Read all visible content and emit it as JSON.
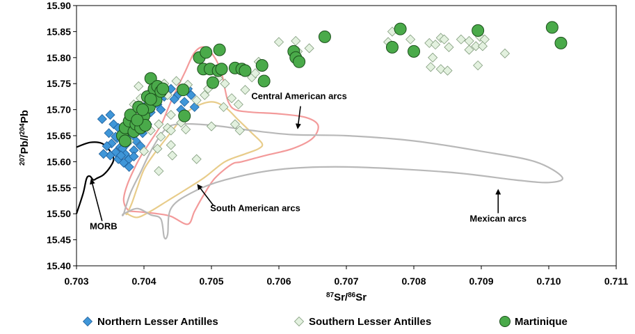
{
  "chart_data": {
    "type": "scatter",
    "xlabel": "87Sr/86Sr",
    "ylabel": "207Pb/204Pb",
    "xlim": [
      0.703,
      0.711
    ],
    "ylim": [
      15.4,
      15.9
    ],
    "x_ticks": [
      "0.703",
      "0.704",
      "0.705",
      "0.706",
      "0.707",
      "0.708",
      "0.709",
      "0.710",
      "0.711"
    ],
    "y_ticks": [
      "15.40",
      "15.45",
      "15.50",
      "15.55",
      "15.60",
      "15.65",
      "15.70",
      "15.75",
      "15.80",
      "15.85",
      "15.90"
    ],
    "grid": false,
    "legend_position": "bottom",
    "colors": {
      "northern": "#3f96d8",
      "northern_edge": "#1f5f9a",
      "southern": "#e3f1df",
      "southern_edge": "#7f9a7a",
      "martinique": "#4aaa4a",
      "martinique_edge": "#1b4f1b",
      "morb": "#000000",
      "central": "#f39a9a",
      "south_american": "#e8cc8a",
      "mexican": "#b8b8b8"
    },
    "series": [
      {
        "name": "Northern Lesser Antilles",
        "marker": "diamond",
        "points": [
          [
            0.7035,
            15.69
          ],
          [
            0.70338,
            15.682
          ],
          [
            0.70355,
            15.672
          ],
          [
            0.70362,
            15.665
          ],
          [
            0.70348,
            15.655
          ],
          [
            0.7036,
            15.645
          ],
          [
            0.70352,
            15.635
          ],
          [
            0.70365,
            15.628
          ],
          [
            0.70358,
            15.618
          ],
          [
            0.7035,
            15.612
          ],
          [
            0.70362,
            15.605
          ],
          [
            0.7037,
            15.598
          ],
          [
            0.70378,
            15.605
          ],
          [
            0.70372,
            15.615
          ],
          [
            0.70368,
            15.625
          ],
          [
            0.70375,
            15.635
          ],
          [
            0.7038,
            15.645
          ],
          [
            0.70385,
            15.622
          ],
          [
            0.70395,
            15.63
          ],
          [
            0.70366,
            15.612
          ],
          [
            0.70345,
            15.63
          ],
          [
            0.70372,
            15.66
          ],
          [
            0.7038,
            15.675
          ],
          [
            0.7039,
            15.69
          ],
          [
            0.704,
            15.705
          ],
          [
            0.70395,
            15.68
          ],
          [
            0.7041,
            15.695
          ],
          [
            0.7042,
            15.71
          ],
          [
            0.7043,
            15.725
          ],
          [
            0.7044,
            15.74
          ],
          [
            0.7045,
            15.728
          ],
          [
            0.7046,
            15.715
          ],
          [
            0.7047,
            15.728
          ],
          [
            0.70475,
            15.705
          ],
          [
            0.70455,
            15.7
          ],
          [
            0.70445,
            15.72
          ],
          [
            0.70465,
            15.74
          ],
          [
            0.70425,
            15.7
          ],
          [
            0.70405,
            15.672
          ],
          [
            0.70398,
            15.655
          ],
          [
            0.70388,
            15.64
          ],
          [
            0.70358,
            15.648
          ],
          [
            0.7034,
            15.615
          ],
          [
            0.70378,
            15.59
          ],
          [
            0.70385,
            15.61
          ]
        ]
      },
      {
        "name": "Southern Lesser Antilles",
        "marker": "diamond",
        "points": [
          [
            0.70385,
            15.71
          ],
          [
            0.70395,
            15.722
          ],
          [
            0.70402,
            15.7
          ],
          [
            0.70412,
            15.738
          ],
          [
            0.7042,
            15.715
          ],
          [
            0.7043,
            15.75
          ],
          [
            0.70435,
            15.728
          ],
          [
            0.7044,
            15.69
          ],
          [
            0.70422,
            15.672
          ],
          [
            0.7041,
            15.66
          ],
          [
            0.70425,
            15.648
          ],
          [
            0.70435,
            15.665
          ],
          [
            0.7039,
            15.695
          ],
          [
            0.70378,
            15.64
          ],
          [
            0.704,
            15.62
          ],
          [
            0.7042,
            15.625
          ],
          [
            0.7044,
            15.632
          ],
          [
            0.70442,
            15.612
          ],
          [
            0.70478,
            15.605
          ],
          [
            0.705,
            15.668
          ],
          [
            0.70478,
            15.718
          ],
          [
            0.7049,
            15.728
          ],
          [
            0.70495,
            15.74
          ],
          [
            0.7051,
            15.76
          ],
          [
            0.7052,
            15.75
          ],
          [
            0.7053,
            15.722
          ],
          [
            0.7054,
            15.71
          ],
          [
            0.7055,
            15.738
          ],
          [
            0.7056,
            15.762
          ],
          [
            0.70565,
            15.77
          ],
          [
            0.7057,
            15.792
          ],
          [
            0.706,
            15.83
          ],
          [
            0.70625,
            15.832
          ],
          [
            0.70628,
            15.812
          ],
          [
            0.70645,
            15.818
          ],
          [
            0.70762,
            15.83
          ],
          [
            0.70768,
            15.85
          ],
          [
            0.70795,
            15.835
          ],
          [
            0.70823,
            15.828
          ],
          [
            0.70832,
            15.825
          ],
          [
            0.7084,
            15.838
          ],
          [
            0.70845,
            15.835
          ],
          [
            0.70852,
            15.82
          ],
          [
            0.70828,
            15.8
          ],
          [
            0.70825,
            15.782
          ],
          [
            0.7084,
            15.778
          ],
          [
            0.7085,
            15.775
          ],
          [
            0.7087,
            15.835
          ],
          [
            0.70882,
            15.832
          ],
          [
            0.70892,
            15.822
          ],
          [
            0.70898,
            15.84
          ],
          [
            0.70905,
            15.835
          ],
          [
            0.70902,
            15.822
          ],
          [
            0.70882,
            15.815
          ],
          [
            0.70895,
            15.785
          ],
          [
            0.70935,
            15.808
          ],
          [
            0.70422,
            15.582
          ],
          [
            0.7044,
            15.66
          ],
          [
            0.70455,
            15.675
          ],
          [
            0.70462,
            15.662
          ],
          [
            0.70412,
            15.728
          ],
          [
            0.70392,
            15.745
          ],
          [
            0.70448,
            15.755
          ],
          [
            0.70465,
            15.748
          ],
          [
            0.70518,
            15.705
          ],
          [
            0.70535,
            15.672
          ],
          [
            0.70542,
            15.66
          ]
        ]
      },
      {
        "name": "Martinique",
        "marker": "circle",
        "points": [
          [
            0.70368,
            15.65
          ],
          [
            0.70372,
            15.665
          ],
          [
            0.70378,
            15.678
          ],
          [
            0.7038,
            15.69
          ],
          [
            0.70385,
            15.658
          ],
          [
            0.70388,
            15.672
          ],
          [
            0.70392,
            15.705
          ],
          [
            0.70395,
            15.665
          ],
          [
            0.704,
            15.688
          ],
          [
            0.70402,
            15.67
          ],
          [
            0.70405,
            15.725
          ],
          [
            0.70408,
            15.705
          ],
          [
            0.7041,
            15.76
          ],
          [
            0.70415,
            15.74
          ],
          [
            0.70418,
            15.718
          ],
          [
            0.7042,
            15.745
          ],
          [
            0.70425,
            15.735
          ],
          [
            0.70428,
            15.74
          ],
          [
            0.70458,
            15.738
          ],
          [
            0.7046,
            15.688
          ],
          [
            0.70372,
            15.64
          ],
          [
            0.7039,
            15.68
          ],
          [
            0.70398,
            15.7
          ],
          [
            0.7041,
            15.72
          ],
          [
            0.70482,
            15.8
          ],
          [
            0.70488,
            15.778
          ],
          [
            0.70492,
            15.81
          ],
          [
            0.70498,
            15.778
          ],
          [
            0.70502,
            15.752
          ],
          [
            0.7051,
            15.775
          ],
          [
            0.70512,
            15.815
          ],
          [
            0.70515,
            15.778
          ],
          [
            0.70535,
            15.78
          ],
          [
            0.70545,
            15.778
          ],
          [
            0.7055,
            15.775
          ],
          [
            0.70575,
            15.785
          ],
          [
            0.70578,
            15.755
          ],
          [
            0.70622,
            15.812
          ],
          [
            0.70625,
            15.8
          ],
          [
            0.7063,
            15.792
          ],
          [
            0.70668,
            15.84
          ],
          [
            0.70768,
            15.82
          ],
          [
            0.7078,
            15.855
          ],
          [
            0.708,
            15.812
          ],
          [
            0.70895,
            15.852
          ],
          [
            0.71005,
            15.858
          ],
          [
            0.71018,
            15.828
          ]
        ]
      }
    ],
    "fields": [
      {
        "name": "MORB",
        "points": [
          [
            0.703,
            15.5
          ],
          [
            0.7031,
            15.54
          ],
          [
            0.70315,
            15.568
          ],
          [
            0.7032,
            15.572
          ],
          [
            0.70325,
            15.565
          ],
          [
            0.7033,
            15.568
          ],
          [
            0.7034,
            15.575
          ],
          [
            0.7035,
            15.59
          ],
          [
            0.70355,
            15.605
          ],
          [
            0.7035,
            15.62
          ],
          [
            0.70338,
            15.635
          ],
          [
            0.7032,
            15.637
          ],
          [
            0.703,
            15.628
          ]
        ]
      },
      {
        "name": "Central American arcs",
        "points": [
          [
            0.70378,
            15.505
          ],
          [
            0.70372,
            15.515
          ],
          [
            0.7037,
            15.53
          ],
          [
            0.70375,
            15.555
          ],
          [
            0.70385,
            15.585
          ],
          [
            0.70395,
            15.61
          ],
          [
            0.7041,
            15.64
          ],
          [
            0.70425,
            15.67
          ],
          [
            0.70435,
            15.7
          ],
          [
            0.70445,
            15.73
          ],
          [
            0.7046,
            15.77
          ],
          [
            0.70475,
            15.81
          ],
          [
            0.7049,
            15.82
          ],
          [
            0.70505,
            15.8
          ],
          [
            0.70515,
            15.77
          ],
          [
            0.7052,
            15.74
          ],
          [
            0.70525,
            15.715
          ],
          [
            0.70535,
            15.7
          ],
          [
            0.7056,
            15.695
          ],
          [
            0.706,
            15.692
          ],
          [
            0.7064,
            15.685
          ],
          [
            0.70658,
            15.67
          ],
          [
            0.7065,
            15.645
          ],
          [
            0.7062,
            15.625
          ],
          [
            0.7058,
            15.612
          ],
          [
            0.70545,
            15.6
          ],
          [
            0.7053,
            15.595
          ],
          [
            0.70505,
            15.568
          ],
          [
            0.70488,
            15.535
          ],
          [
            0.70475,
            15.505
          ],
          [
            0.70465,
            15.48
          ],
          [
            0.7044,
            15.495
          ],
          [
            0.7042,
            15.5
          ],
          [
            0.704,
            15.503
          ],
          [
            0.70378,
            15.505
          ]
        ]
      },
      {
        "name": "South American arcs",
        "points": [
          [
            0.70375,
            15.5
          ],
          [
            0.70382,
            15.52
          ],
          [
            0.7039,
            15.55
          ],
          [
            0.704,
            15.585
          ],
          [
            0.70415,
            15.615
          ],
          [
            0.7043,
            15.64
          ],
          [
            0.70445,
            15.665
          ],
          [
            0.7046,
            15.69
          ],
          [
            0.70475,
            15.705
          ],
          [
            0.705,
            15.715
          ],
          [
            0.7052,
            15.705
          ],
          [
            0.7054,
            15.68
          ],
          [
            0.7056,
            15.655
          ],
          [
            0.70575,
            15.635
          ],
          [
            0.7057,
            15.625
          ],
          [
            0.7055,
            15.615
          ],
          [
            0.7052,
            15.6
          ],
          [
            0.7049,
            15.57
          ],
          [
            0.7046,
            15.545
          ],
          [
            0.70435,
            15.525
          ],
          [
            0.7041,
            15.505
          ],
          [
            0.7039,
            15.493
          ],
          [
            0.70375,
            15.5
          ]
        ]
      },
      {
        "name": "Mexican arcs",
        "points": [
          [
            0.7037,
            15.5
          ],
          [
            0.7038,
            15.54
          ],
          [
            0.70395,
            15.58
          ],
          [
            0.7041,
            15.62
          ],
          [
            0.7043,
            15.66
          ],
          [
            0.7045,
            15.672
          ],
          [
            0.705,
            15.67
          ],
          [
            0.7056,
            15.66
          ],
          [
            0.7062,
            15.652
          ],
          [
            0.707,
            15.65
          ],
          [
            0.708,
            15.64
          ],
          [
            0.709,
            15.62
          ],
          [
            0.7098,
            15.6
          ],
          [
            0.7102,
            15.57
          ],
          [
            0.71,
            15.56
          ],
          [
            0.7095,
            15.565
          ],
          [
            0.7085,
            15.58
          ],
          [
            0.707,
            15.59
          ],
          [
            0.706,
            15.585
          ],
          [
            0.7052,
            15.565
          ],
          [
            0.7047,
            15.54
          ],
          [
            0.7044,
            15.51
          ],
          [
            0.70435,
            15.46
          ],
          [
            0.7043,
            15.455
          ],
          [
            0.70425,
            15.49
          ],
          [
            0.7041,
            15.498
          ],
          [
            0.7039,
            15.51
          ],
          [
            0.7037,
            15.5
          ]
        ]
      }
    ],
    "annotations": [
      {
        "text": "MORB",
        "arrow_to": [
          0.70322,
          15.565
        ],
        "label_at": [
          0.7034,
          15.47
        ]
      },
      {
        "text": "Central American arcs",
        "arrow_to": [
          0.70628,
          15.665
        ],
        "label_at": [
          0.7063,
          15.72
        ]
      },
      {
        "text": "South American arcs",
        "arrow_to": [
          0.7048,
          15.555
        ],
        "label_at": [
          0.70565,
          15.505
        ]
      },
      {
        "text": "Mexican arcs",
        "arrow_to": [
          0.70925,
          15.545
        ],
        "label_at": [
          0.70925,
          15.485
        ]
      }
    ]
  }
}
